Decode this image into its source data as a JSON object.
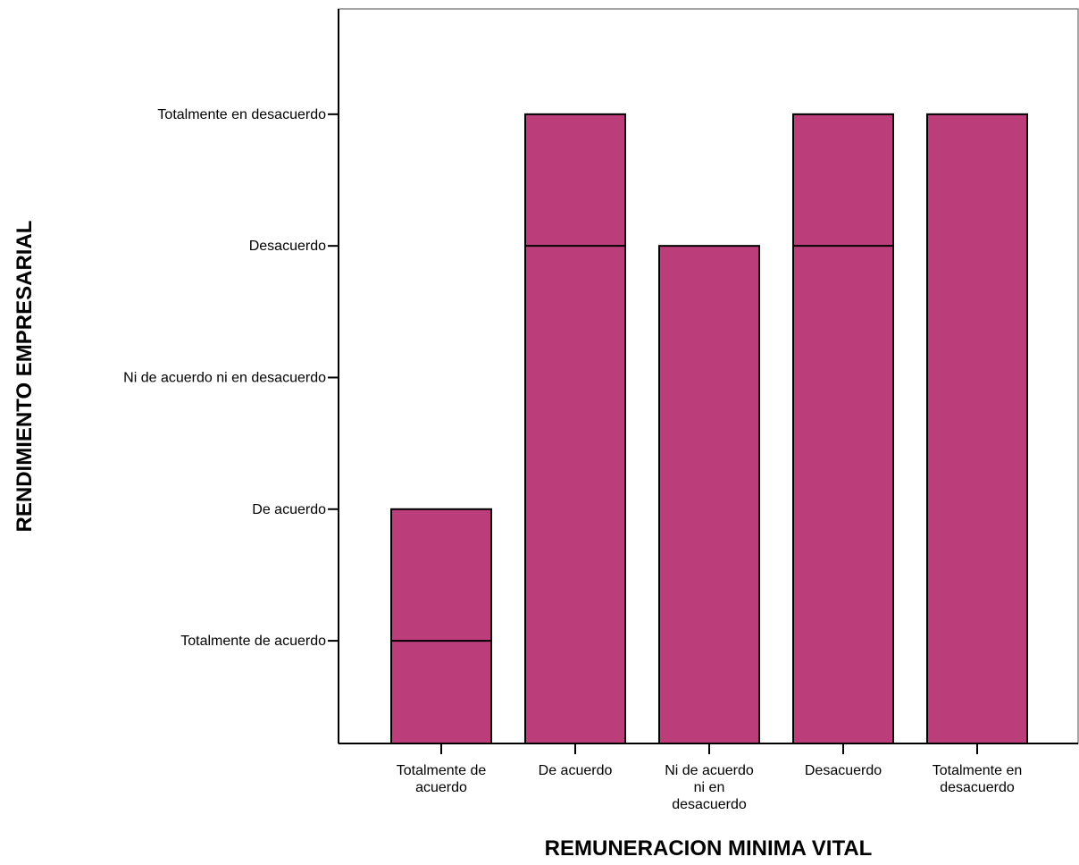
{
  "chart_data": {
    "type": "bar",
    "title": "",
    "xlabel": "REMUNERACION MINIMA VITAL",
    "ylabel": "RENDIMIENTO EMPRESARIAL",
    "categories": [
      [
        "Totalmente de",
        "acuerdo"
      ],
      [
        "De acuerdo"
      ],
      [
        "Ni de acuerdo",
        "ni en",
        "desacuerdo"
      ],
      [
        "Desacuerdo"
      ],
      [
        "Totalmente en",
        "desacuerdo"
      ]
    ],
    "y_ticks": [
      {
        "value": 1,
        "label": "Totalmente de acuerdo"
      },
      {
        "value": 2,
        "label": "De acuerdo"
      },
      {
        "value": 3,
        "label": "Ni de acuerdo ni en desacuerdo"
      },
      {
        "value": 4,
        "label": "Desacuerdo"
      },
      {
        "value": 5,
        "label": "Totalmente en desacuerdo"
      }
    ],
    "values": [
      2,
      5,
      4,
      5,
      5
    ],
    "inner_lines": [
      [
        1
      ],
      [
        4
      ],
      [],
      [
        4
      ],
      []
    ],
    "ylim": [
      0.22,
      5.8
    ],
    "grid": false,
    "legend": "none",
    "bar_color": "#bb3d7a",
    "edge_color": "#000000"
  }
}
